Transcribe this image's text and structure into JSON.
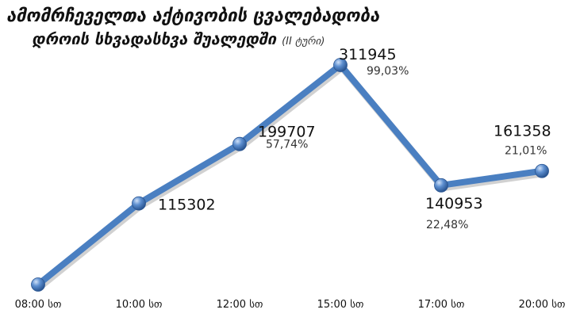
{
  "chart_data": {
    "type": "line",
    "title_line1": "ამომრჩეველთა აქტივობის ცვალებადობა",
    "title_line2": "დროის სხვადასხვა შუალედში",
    "title_note": "(II ტური)",
    "categories": [
      "08:00 სთ",
      "10:00 სთ",
      "12:00 სთ",
      "15:00 სთ",
      "17:00 სთ",
      "20:00 სთ"
    ],
    "series": [
      {
        "values": [
          0,
          115302,
          199707,
          311945,
          140953,
          161358
        ],
        "value_labels": [
          "",
          "115302",
          "199707",
          "311945",
          "140953",
          "161358"
        ],
        "percent_labels": [
          "",
          "",
          "57,74%",
          "99,03%",
          "22,48%",
          "21,01%"
        ],
        "color": "#4a7fc1"
      }
    ],
    "ylim": [
      0,
      311945
    ],
    "grid": false,
    "legend": "none"
  }
}
